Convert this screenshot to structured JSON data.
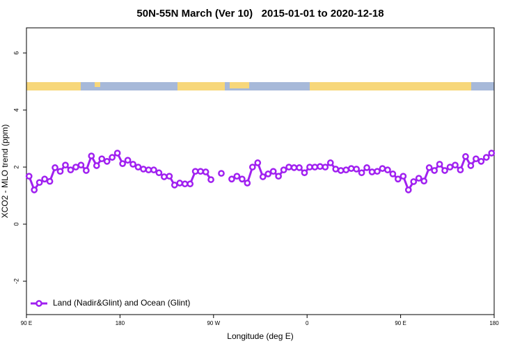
{
  "chart_data": {
    "type": "line",
    "title": "50N-55N March (Ver 10)   2015-01-01 to 2020-12-18",
    "x_label": "Longitude (deg E)",
    "y_label": "XCO2 - MLO trend (ppm)",
    "xlim": [
      90,
      540
    ],
    "xticks": [
      {
        "value": 90,
        "label": "90 E"
      },
      {
        "value": 180,
        "label": "180"
      },
      {
        "value": 270,
        "label": "90 W"
      },
      {
        "value": 360,
        "label": "0"
      },
      {
        "value": 450,
        "label": "90 E"
      },
      {
        "value": 540,
        "label": "180"
      }
    ],
    "ylim": [
      -3.17,
      6.88
    ],
    "yticks": [
      -2,
      0,
      2,
      4,
      6
    ],
    "legend": "bottom-left",
    "x": [
      92.5,
      97.5,
      102.5,
      107.5,
      112.5,
      117.5,
      122.5,
      127.5,
      132.5,
      137.5,
      142.5,
      147.5,
      152.5,
      157.5,
      162.5,
      167.5,
      172.5,
      177.5,
      182.5,
      187.5,
      192.5,
      197.5,
      202.5,
      207.5,
      212.5,
      217.5,
      222.5,
      227.5,
      232.5,
      237.5,
      242.5,
      247.5,
      252.5,
      257.5,
      262.5,
      267.5,
      272.5,
      277.5,
      282.5,
      287.5,
      292.5,
      297.5,
      302.5,
      307.5,
      312.5,
      317.5,
      322.5,
      327.5,
      332.5,
      337.5,
      342.5,
      347.5,
      352.5,
      357.5,
      362.5,
      367.5,
      372.5,
      377.5,
      382.5,
      387.5,
      392.5,
      397.5,
      402.5,
      407.5,
      412.5,
      417.5,
      422.5,
      427.5,
      432.5,
      437.5,
      442.5,
      447.5,
      452.5,
      457.5,
      462.5,
      467.5,
      472.5,
      477.5,
      482.5,
      487.5,
      492.5,
      497.5,
      502.5,
      507.5,
      512.5,
      517.5,
      522.5,
      527.5,
      532.5,
      537.5
    ],
    "series": [
      {
        "name": "Land (Nadir&Glint) and Ocean (Glint)",
        "color": "#a020f0",
        "values": [
          1.68,
          1.2,
          1.46,
          1.58,
          1.5,
          1.98,
          1.85,
          2.07,
          1.9,
          2.0,
          2.07,
          1.88,
          2.39,
          2.05,
          2.29,
          2.2,
          2.34,
          2.49,
          2.12,
          2.24,
          2.1,
          2.0,
          1.93,
          1.9,
          1.9,
          1.8,
          1.66,
          1.68,
          1.37,
          1.44,
          1.41,
          1.41,
          1.85,
          1.85,
          1.83,
          1.56,
          null,
          1.78,
          null,
          1.58,
          1.68,
          1.58,
          1.44,
          2.0,
          2.15,
          1.66,
          1.76,
          1.85,
          1.68,
          1.9,
          2.0,
          1.98,
          1.98,
          1.8,
          2.0,
          2.0,
          2.02,
          2.0,
          2.15,
          1.93,
          1.88,
          1.9,
          1.95,
          1.93,
          1.8,
          1.98,
          1.83,
          1.85,
          1.95,
          1.9,
          1.76,
          1.58,
          1.68,
          1.2,
          1.49,
          1.61,
          1.51,
          1.98,
          1.88,
          2.1,
          1.88,
          2.0,
          2.07,
          1.9,
          2.37,
          2.05,
          2.29,
          2.2,
          2.34,
          2.49
        ]
      }
    ]
  }
}
